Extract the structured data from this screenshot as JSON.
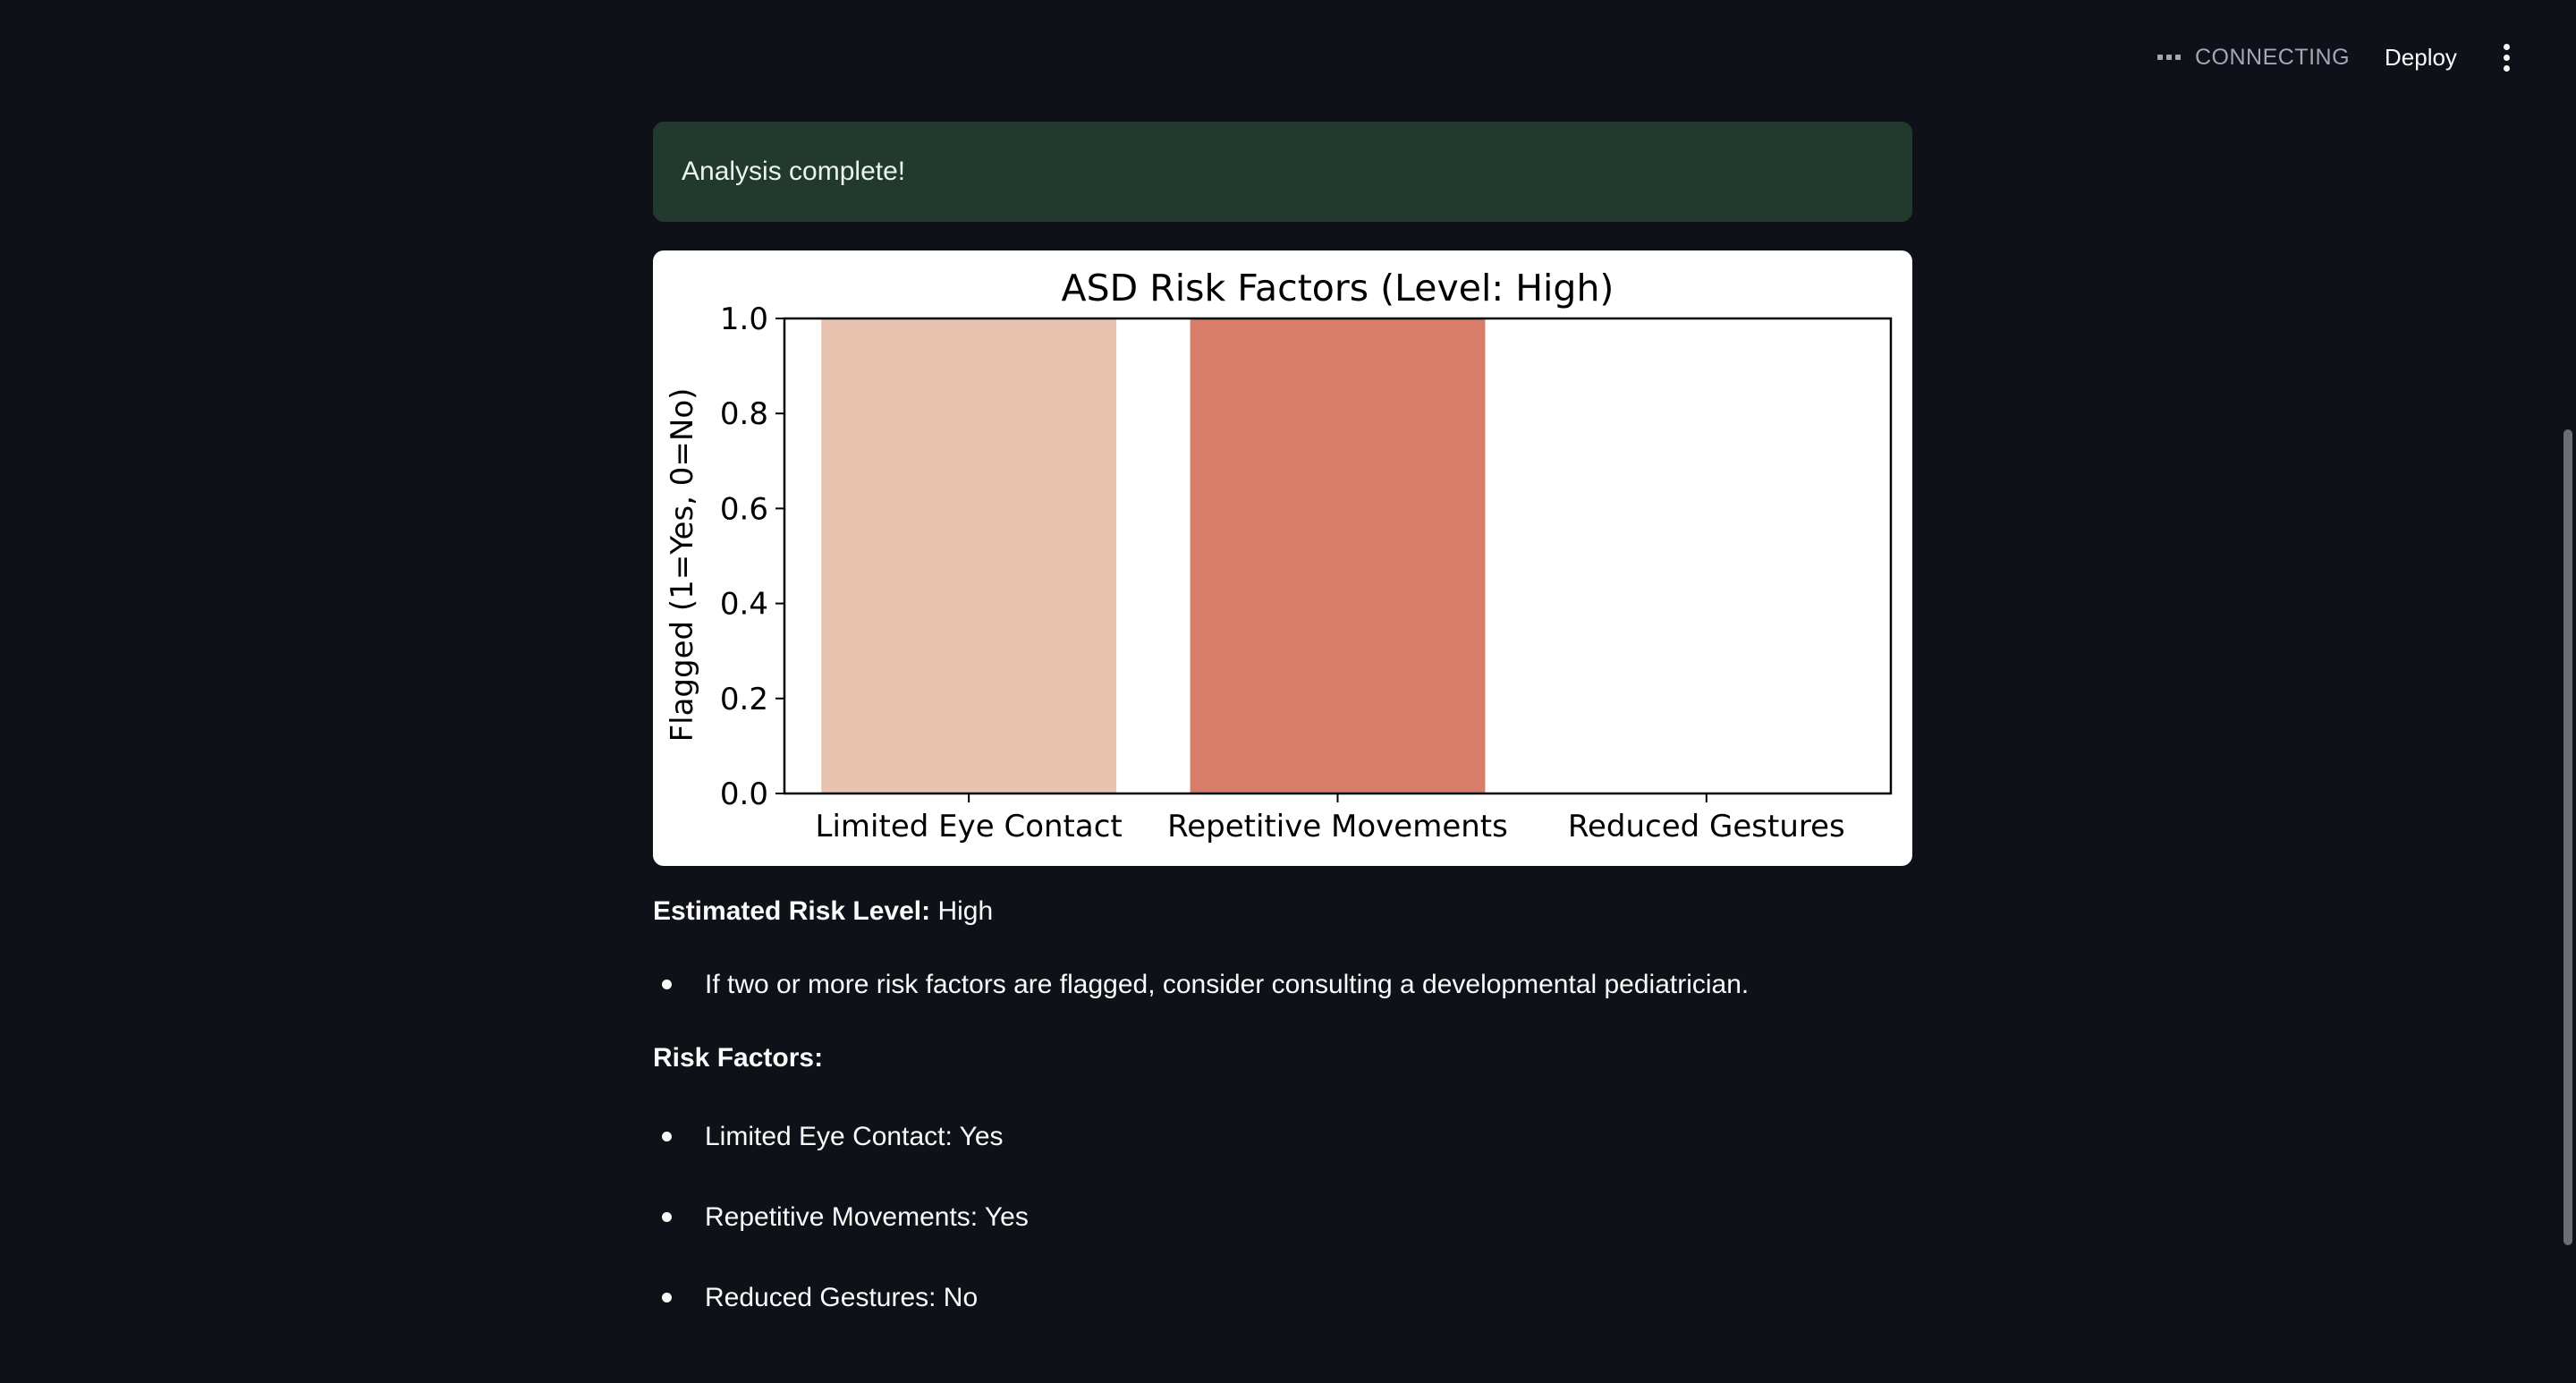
{
  "header": {
    "status_text": "CONNECTING",
    "deploy_label": "Deploy",
    "menu_icon": "vertical-ellipsis-icon",
    "status_icon": "dots-icon"
  },
  "alert": {
    "message": "Analysis complete!",
    "background_color": "#213a2d"
  },
  "chart_data": {
    "type": "bar",
    "title": "ASD Risk Factors (Level: High)",
    "xlabel": "",
    "ylabel": "Flagged (1=Yes, 0=No)",
    "categories": [
      "Limited Eye Contact",
      "Repetitive Movements",
      "Reduced Gestures"
    ],
    "values": [
      1,
      1,
      0
    ],
    "colors": [
      "#e8c3b0",
      "#d77d68",
      "#f0a58f"
    ],
    "ylim": [
      0,
      1
    ],
    "yticks": [
      "0.0",
      "0.2",
      "0.4",
      "0.6",
      "0.8",
      "1.0"
    ],
    "grid": false,
    "legend": "none"
  },
  "summary": {
    "risk_label": "Estimated Risk Level:",
    "risk_value": "High",
    "advice": "If two or more risk factors are flagged, consider consulting a developmental pediatrician.",
    "factors_heading": "Risk Factors:",
    "factors": [
      "Limited Eye Contact: Yes",
      "Repetitive Movements: Yes",
      "Reduced Gestures: No"
    ]
  }
}
